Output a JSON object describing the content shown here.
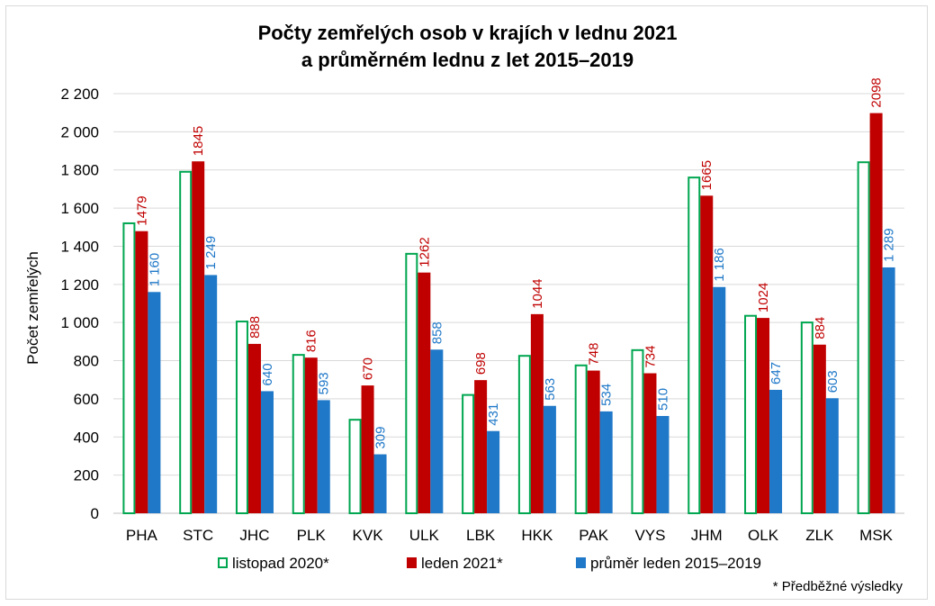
{
  "chart_data": {
    "type": "bar",
    "title_lines": [
      "Počty zemřelých osob v krajích v lednu 2021",
      "a průměrném lednu z let 2015–2019"
    ],
    "ylabel": "Počet zemřelých",
    "xlabel": "",
    "ylim": [
      0,
      2200
    ],
    "ytick_labels": [
      "0",
      "200",
      "400",
      "600",
      "800",
      "1 000",
      "1 200",
      "1 400",
      "1 600",
      "1 800",
      "2 000",
      "2 200"
    ],
    "grid": true,
    "legend_position": "bottom",
    "categories": [
      "PHA",
      "STC",
      "JHC",
      "PLK",
      "KVK",
      "ULK",
      "LBK",
      "HKK",
      "PAK",
      "VYS",
      "JHM",
      "OLK",
      "ZLK",
      "MSK"
    ],
    "series": [
      {
        "name": "listopad 2020*",
        "color": "#00a650",
        "style": "outline",
        "values": [
          1525,
          1795,
          1010,
          835,
          495,
          1365,
          625,
          830,
          780,
          860,
          1765,
          1040,
          1005,
          1845
        ]
      },
      {
        "name": "leden 2021*",
        "color": "#c00000",
        "style": "filled",
        "values": [
          1479,
          1845,
          888,
          816,
          670,
          1262,
          698,
          1044,
          748,
          734,
          1665,
          1024,
          884,
          2098
        ],
        "labels": [
          "1479",
          "1845",
          "888",
          "816",
          "670",
          "1262",
          "698",
          "1044",
          "748",
          "734",
          "1665",
          "1024",
          "884",
          "2098"
        ]
      },
      {
        "name": "průměr leden 2015–2019",
        "color": "#1f78c8",
        "style": "filled",
        "values": [
          1160,
          1249,
          640,
          593,
          309,
          858,
          431,
          563,
          534,
          510,
          1186,
          647,
          603,
          1289
        ],
        "labels": [
          "1 160",
          "1 249",
          "640",
          "593",
          "309",
          "858",
          "431",
          "563",
          "534",
          "510",
          "1 186",
          "647",
          "603",
          "1 289"
        ]
      }
    ],
    "footnote": "* Předběžné výsledky"
  }
}
